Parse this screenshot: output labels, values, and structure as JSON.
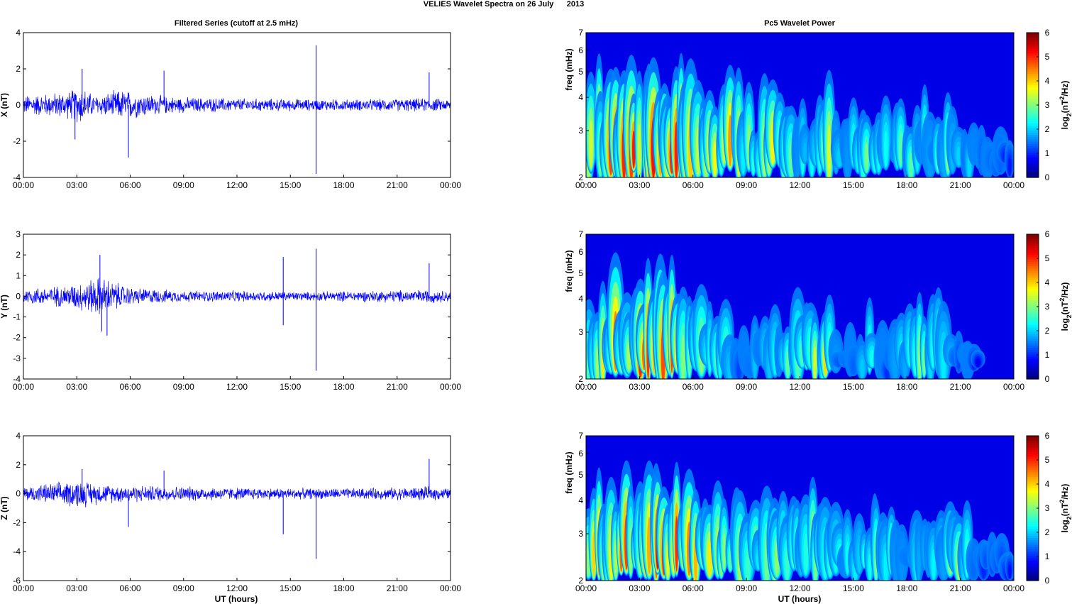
{
  "figure": {
    "title": "VELIES Wavelet Spectra on 26 July      2013",
    "left_column_title": "Filtered Series (cutoff at 2.5 mHz)",
    "right_column_title": "Pc5 Wavelet Power",
    "x_axis_label": "UT (hours)"
  },
  "chart_data": [
    {
      "type": "line",
      "panel": "X",
      "ylabel": "X (nT)",
      "xlabel": "",
      "x_ticks": [
        "00:00",
        "03:00",
        "06:00",
        "09:00",
        "12:00",
        "15:00",
        "18:00",
        "21:00",
        "00:00"
      ],
      "xlim_hours": [
        0,
        24
      ],
      "ylim": [
        -4,
        4
      ],
      "y_ticks": [
        -4,
        -2,
        0,
        2,
        4
      ],
      "color": "#0000ff",
      "envelope": [
        {
          "x": 0,
          "amp": 0.5
        },
        {
          "x": 2.5,
          "amp": 0.7
        },
        {
          "x": 3.2,
          "amp": 1.0
        },
        {
          "x": 4.0,
          "amp": 0.5
        },
        {
          "x": 5.5,
          "amp": 0.8
        },
        {
          "x": 7.5,
          "amp": 0.5
        },
        {
          "x": 9.0,
          "amp": 0.4
        },
        {
          "x": 12.0,
          "amp": 0.35
        },
        {
          "x": 16.0,
          "amp": 0.3
        },
        {
          "x": 19.0,
          "amp": 0.3
        },
        {
          "x": 22.5,
          "amp": 0.35
        },
        {
          "x": 24,
          "amp": 0.3
        }
      ],
      "spikes": [
        {
          "x": 3.3,
          "y": 2.0
        },
        {
          "x": 2.9,
          "y": -1.9
        },
        {
          "x": 5.9,
          "y": -2.9
        },
        {
          "x": 7.9,
          "y": 1.9
        },
        {
          "x": 16.45,
          "y": 3.3
        },
        {
          "x": 16.45,
          "y": -3.8
        },
        {
          "x": 22.8,
          "y": 1.8
        }
      ]
    },
    {
      "type": "line",
      "panel": "Y",
      "ylabel": "Y (nT)",
      "xlabel": "",
      "x_ticks": [
        "00:00",
        "03:00",
        "06:00",
        "09:00",
        "12:00",
        "15:00",
        "18:00",
        "21:00",
        "00:00"
      ],
      "xlim_hours": [
        0,
        24
      ],
      "ylim": [
        -4,
        3
      ],
      "y_ticks": [
        -4,
        -3,
        -2,
        -1,
        0,
        1,
        2,
        3
      ],
      "color": "#0000ff",
      "envelope": [
        {
          "x": 0,
          "amp": 0.35
        },
        {
          "x": 2.5,
          "amp": 0.5
        },
        {
          "x": 4.3,
          "amp": 0.9
        },
        {
          "x": 6.0,
          "amp": 0.4
        },
        {
          "x": 9.0,
          "amp": 0.25
        },
        {
          "x": 12.0,
          "amp": 0.25
        },
        {
          "x": 16.0,
          "amp": 0.2
        },
        {
          "x": 19.0,
          "amp": 0.25
        },
        {
          "x": 22.8,
          "amp": 0.3
        },
        {
          "x": 24,
          "amp": 0.25
        }
      ],
      "spikes": [
        {
          "x": 4.3,
          "y": 2.0
        },
        {
          "x": 4.4,
          "y": -1.7
        },
        {
          "x": 4.7,
          "y": -1.9
        },
        {
          "x": 14.6,
          "y": 1.9
        },
        {
          "x": 14.6,
          "y": -1.4
        },
        {
          "x": 16.45,
          "y": 2.3
        },
        {
          "x": 16.45,
          "y": -3.6
        },
        {
          "x": 22.8,
          "y": 1.6
        }
      ]
    },
    {
      "type": "line",
      "panel": "Z",
      "ylabel": "Z (nT)",
      "xlabel": "UT (hours)",
      "x_ticks": [
        "00:00",
        "03:00",
        "06:00",
        "09:00",
        "12:00",
        "15:00",
        "18:00",
        "21:00",
        "00:00"
      ],
      "xlim_hours": [
        0,
        24
      ],
      "ylim": [
        -6,
        4
      ],
      "y_ticks": [
        -6,
        -4,
        -2,
        0,
        2,
        4
      ],
      "color": "#0000ff",
      "envelope": [
        {
          "x": 0,
          "amp": 0.45
        },
        {
          "x": 3.2,
          "amp": 0.9
        },
        {
          "x": 4.5,
          "amp": 0.6
        },
        {
          "x": 6.0,
          "amp": 0.55
        },
        {
          "x": 8.0,
          "amp": 0.5
        },
        {
          "x": 12.0,
          "amp": 0.4
        },
        {
          "x": 16.0,
          "amp": 0.35
        },
        {
          "x": 19.0,
          "amp": 0.35
        },
        {
          "x": 22.8,
          "amp": 0.45
        },
        {
          "x": 24,
          "amp": 0.35
        }
      ],
      "spikes": [
        {
          "x": 3.3,
          "y": 1.7
        },
        {
          "x": 5.9,
          "y": -2.3
        },
        {
          "x": 7.9,
          "y": 1.6
        },
        {
          "x": 14.6,
          "y": -2.8
        },
        {
          "x": 16.45,
          "y": -4.5
        },
        {
          "x": 22.8,
          "y": 2.4
        }
      ]
    },
    {
      "type": "heatmap",
      "panel": "X",
      "ylabel": "freq (mHz)",
      "xlabel": "",
      "x_ticks": [
        "00:00",
        "03:00",
        "06:00",
        "09:00",
        "12:00",
        "15:00",
        "18:00",
        "21:00",
        "00:00"
      ],
      "xlim_hours": [
        0,
        24
      ],
      "y_scale": "log",
      "ylim": [
        2,
        7
      ],
      "y_ticks": [
        2,
        3,
        4,
        5,
        6,
        7
      ],
      "colorbar_label": "log2(nT2/Hz)",
      "colorbar_ticks": [
        0,
        1,
        2,
        3,
        4,
        5,
        6
      ],
      "colormap": "jet",
      "activity": [
        {
          "x": 0,
          "power": 0.9
        },
        {
          "x": 1.0,
          "power": 0.85
        },
        {
          "x": 2.0,
          "power": 0.9
        },
        {
          "x": 3.0,
          "power": 1.0
        },
        {
          "x": 4.0,
          "power": 1.0
        },
        {
          "x": 5.0,
          "power": 1.0
        },
        {
          "x": 6.0,
          "power": 0.85
        },
        {
          "x": 7.0,
          "power": 0.75
        },
        {
          "x": 8.0,
          "power": 0.8
        },
        {
          "x": 9.0,
          "power": 0.55
        },
        {
          "x": 10.0,
          "power": 0.6
        },
        {
          "x": 11.0,
          "power": 0.75
        },
        {
          "x": 12.0,
          "power": 0.4
        },
        {
          "x": 13.5,
          "power": 0.7
        },
        {
          "x": 14.5,
          "power": 0.3
        },
        {
          "x": 15.5,
          "power": 0.65
        },
        {
          "x": 17.0,
          "power": 0.45
        },
        {
          "x": 18.0,
          "power": 0.55
        },
        {
          "x": 19.5,
          "power": 0.45
        },
        {
          "x": 20.5,
          "power": 0.6
        },
        {
          "x": 22.0,
          "power": 0.3
        },
        {
          "x": 24,
          "power": 0.2
        }
      ]
    },
    {
      "type": "heatmap",
      "panel": "Y",
      "ylabel": "freq (mHz)",
      "xlabel": "",
      "x_ticks": [
        "00:00",
        "03:00",
        "06:00",
        "09:00",
        "12:00",
        "15:00",
        "18:00",
        "21:00",
        "00:00"
      ],
      "xlim_hours": [
        0,
        24
      ],
      "y_scale": "log",
      "ylim": [
        2,
        7
      ],
      "y_ticks": [
        2,
        3,
        4,
        5,
        6,
        7
      ],
      "colorbar_label": "log2(nT2/Hz)",
      "colorbar_ticks": [
        0,
        1,
        2,
        3,
        4,
        5,
        6
      ],
      "colormap": "jet",
      "activity": [
        {
          "x": 0,
          "power": 0.75
        },
        {
          "x": 1.5,
          "power": 0.8
        },
        {
          "x": 3.0,
          "power": 0.9
        },
        {
          "x": 4.5,
          "power": 1.0
        },
        {
          "x": 5.5,
          "power": 0.95
        },
        {
          "x": 6.5,
          "power": 0.7
        },
        {
          "x": 7.5,
          "power": 0.6
        },
        {
          "x": 8.5,
          "power": 0.25
        },
        {
          "x": 10.0,
          "power": 0.4
        },
        {
          "x": 11.5,
          "power": 0.55
        },
        {
          "x": 13.4,
          "power": 0.75
        },
        {
          "x": 14.5,
          "power": 0.25
        },
        {
          "x": 15.8,
          "power": 0.45
        },
        {
          "x": 17.0,
          "power": 0.3
        },
        {
          "x": 18.0,
          "power": 0.55
        },
        {
          "x": 19.5,
          "power": 0.55
        },
        {
          "x": 21.0,
          "power": 0.35
        },
        {
          "x": 22.5,
          "power": 0.05
        },
        {
          "x": 24,
          "power": 0.0
        }
      ]
    },
    {
      "type": "heatmap",
      "panel": "Z",
      "ylabel": "freq (mHz)",
      "xlabel": "UT (hours)",
      "x_ticks": [
        "00:00",
        "03:00",
        "06:00",
        "09:00",
        "12:00",
        "15:00",
        "18:00",
        "21:00",
        "00:00"
      ],
      "xlim_hours": [
        0,
        24
      ],
      "y_scale": "log",
      "ylim": [
        2,
        7
      ],
      "y_ticks": [
        2,
        3,
        4,
        5,
        6,
        7
      ],
      "colorbar_label": "log2(nT2/Hz)",
      "colorbar_ticks": [
        0,
        1,
        2,
        3,
        4,
        5,
        6
      ],
      "colormap": "jet",
      "activity": [
        {
          "x": 0,
          "power": 0.85
        },
        {
          "x": 1.0,
          "power": 0.8
        },
        {
          "x": 2.0,
          "power": 0.85
        },
        {
          "x": 3.0,
          "power": 0.95
        },
        {
          "x": 4.0,
          "power": 1.0
        },
        {
          "x": 5.0,
          "power": 1.0
        },
        {
          "x": 6.0,
          "power": 0.8
        },
        {
          "x": 7.0,
          "power": 0.7
        },
        {
          "x": 8.0,
          "power": 0.8
        },
        {
          "x": 9.0,
          "power": 0.65
        },
        {
          "x": 10.0,
          "power": 0.7
        },
        {
          "x": 11.0,
          "power": 0.85
        },
        {
          "x": 12.0,
          "power": 0.5
        },
        {
          "x": 13.5,
          "power": 0.75
        },
        {
          "x": 14.5,
          "power": 0.45
        },
        {
          "x": 15.5,
          "power": 0.6
        },
        {
          "x": 17.0,
          "power": 0.55
        },
        {
          "x": 18.0,
          "power": 0.45
        },
        {
          "x": 19.5,
          "power": 0.4
        },
        {
          "x": 20.8,
          "power": 0.65
        },
        {
          "x": 22.0,
          "power": 0.3
        },
        {
          "x": 24,
          "power": 0.2
        }
      ]
    }
  ]
}
